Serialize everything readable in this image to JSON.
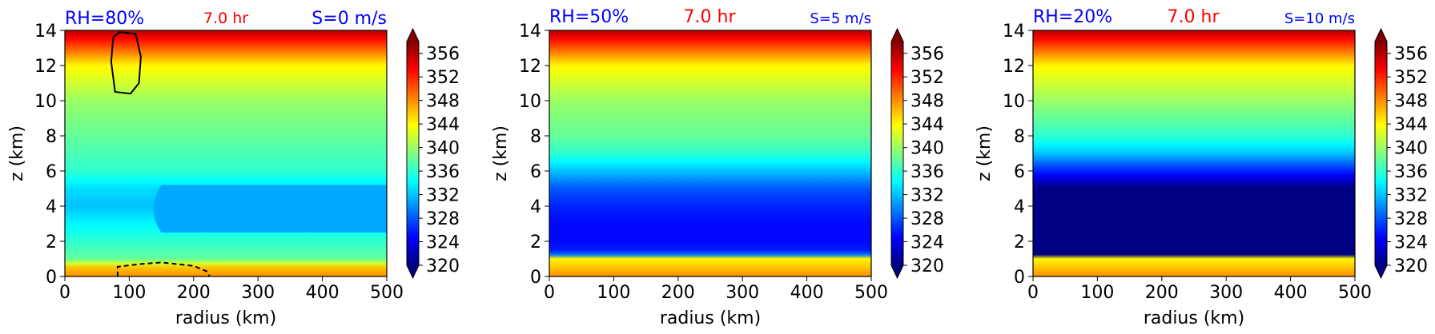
{
  "chart_data": [
    {
      "type": "heatmap",
      "title_left": "RH=80%",
      "title_center": "7.0 hr",
      "title_right": "S=0 m/s",
      "xlabel": "radius (km)",
      "ylabel": "z (km)",
      "xlim": [
        0,
        500
      ],
      "ylim": [
        0,
        14
      ],
      "xticks": [
        "0",
        "100",
        "200",
        "300",
        "400",
        "500"
      ],
      "yticks": [
        "0",
        "2",
        "4",
        "6",
        "8",
        "10",
        "12",
        "14"
      ],
      "field_profile_z_km": [
        0,
        0.5,
        1,
        2,
        3,
        4,
        5,
        6,
        8,
        10,
        12,
        13,
        14
      ],
      "field_profile_theta_K": [
        348,
        346,
        338,
        336,
        334,
        332,
        333,
        336,
        338,
        340,
        344,
        350,
        356
      ],
      "minimum_feature": {
        "theta_K": 331,
        "r_start_km": 125,
        "z_range_km": [
          2.5,
          5.2
        ]
      },
      "contours": [
        {
          "style": "solid",
          "theta_K": 350,
          "points": [
            [
              75,
              13.6
            ],
            [
              85,
              13.9
            ],
            [
              110,
              13.8
            ],
            [
              118,
              12.5
            ],
            [
              115,
              11.0
            ],
            [
              102,
              10.4
            ],
            [
              78,
              10.5
            ],
            [
              72,
              12.2
            ],
            [
              75,
              13.6
            ]
          ]
        },
        {
          "style": "dashed",
          "theta_K": 350,
          "points": [
            [
              82,
              0.0
            ],
            [
              82,
              0.55
            ],
            [
              115,
              0.7
            ],
            [
              150,
              0.8
            ],
            [
              200,
              0.6
            ],
            [
              220,
              0.3
            ],
            [
              225,
              0.0
            ]
          ]
        }
      ]
    },
    {
      "type": "heatmap",
      "title_left": "RH=50%",
      "title_center": "7.0 hr",
      "title_right": "S=5 m/s",
      "xlabel": "radius (km)",
      "ylabel": "z (km)",
      "xlim": [
        0,
        500
      ],
      "ylim": [
        0,
        14
      ],
      "xticks": [
        "0",
        "100",
        "200",
        "300",
        "400",
        "500"
      ],
      "yticks": [
        "0",
        "2",
        "4",
        "6",
        "8",
        "10",
        "12",
        "14"
      ],
      "field_profile_z_km": [
        0,
        0.5,
        1,
        1.3,
        2,
        3,
        4,
        5,
        6,
        7,
        8,
        10,
        12,
        13,
        14
      ],
      "field_profile_theta_K": [
        348,
        346,
        344,
        326,
        325,
        325,
        326,
        328,
        332,
        336,
        338,
        340,
        344,
        350,
        356
      ]
    },
    {
      "type": "heatmap",
      "title_left": "RH=20%",
      "title_center": "7.0 hr",
      "title_right": "S=10 m/s",
      "xlabel": "radius (km)",
      "ylabel": "z (km)",
      "xlim": [
        0,
        500
      ],
      "ylim": [
        0,
        14
      ],
      "xticks": [
        "0",
        "100",
        "200",
        "300",
        "400",
        "500"
      ],
      "yticks": [
        "0",
        "2",
        "4",
        "6",
        "8",
        "10",
        "12",
        "14"
      ],
      "field_profile_z_km": [
        0,
        0.5,
        1,
        1.2,
        2,
        3,
        4,
        5,
        6,
        7,
        8,
        10,
        12,
        13,
        14
      ],
      "field_profile_theta_K": [
        348,
        346,
        344,
        320,
        320,
        320,
        320,
        320,
        326,
        332,
        336,
        340,
        344,
        350,
        356
      ]
    }
  ],
  "colorbar": {
    "ticks": [
      "320",
      "324",
      "328",
      "332",
      "336",
      "340",
      "344",
      "348",
      "352",
      "356"
    ],
    "range": [
      320,
      358
    ],
    "extend": "both"
  },
  "colors": {
    "title_left": "#0000ff",
    "title_center": "#ff0000",
    "title_right": "#0000ff",
    "colormap": "jet"
  }
}
